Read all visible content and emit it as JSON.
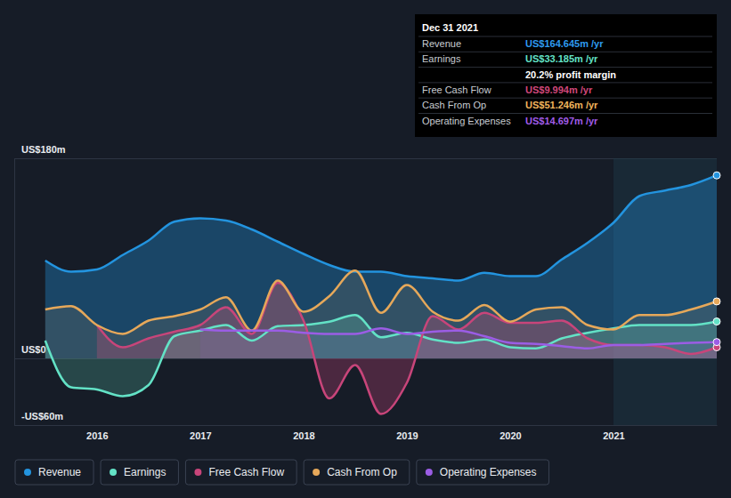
{
  "chart_data": {
    "type": "line",
    "x": [
      2015.5,
      2015.75,
      2016.0,
      2016.25,
      2016.5,
      2016.75,
      2017.0,
      2017.25,
      2017.5,
      2017.75,
      2018.0,
      2018.25,
      2018.5,
      2018.75,
      2019.0,
      2019.25,
      2019.5,
      2019.75,
      2020.0,
      2020.25,
      2020.5,
      2020.75,
      2021.0,
      2021.25,
      2021.5,
      2021.75,
      2022.0
    ],
    "series": [
      {
        "name": "Revenue",
        "color": "#2394df",
        "values": [
          88,
          78,
          80,
          93,
          106,
          123,
          126,
          124,
          116,
          105,
          94,
          84,
          78,
          78,
          74,
          72,
          70,
          77,
          74,
          74,
          89,
          104,
          122,
          146,
          151,
          156,
          164.645
        ]
      },
      {
        "name": "Earnings",
        "color": "#63e2c6",
        "values": [
          16,
          -26,
          -28,
          -34,
          -24,
          20,
          25,
          30,
          16,
          29,
          30,
          33,
          39,
          19,
          23,
          17,
          14,
          17,
          10,
          9,
          18,
          23,
          27,
          30,
          30,
          30,
          33.185
        ]
      },
      {
        "name": "Free Cash Flow",
        "color": "#c8457a",
        "values": [
          null,
          null,
          30,
          10,
          18,
          24,
          30,
          46,
          22,
          68,
          34,
          -36,
          -6,
          -50,
          -22,
          38,
          26,
          41,
          32,
          32,
          34,
          18,
          12,
          12,
          10,
          4,
          9.994
        ]
      },
      {
        "name": "Cash From Op",
        "color": "#e6a85a",
        "values": [
          44,
          47,
          30,
          22,
          34,
          38,
          44,
          55,
          25,
          70,
          42,
          56,
          79,
          41,
          66,
          42,
          34,
          48,
          33,
          44,
          46,
          30,
          26,
          39,
          39,
          44,
          51.246
        ]
      },
      {
        "name": "Operating Expenses",
        "color": "#9b5de5",
        "values": [
          null,
          null,
          null,
          null,
          null,
          null,
          26,
          25,
          25,
          25,
          23,
          22,
          22,
          27,
          22,
          24,
          25,
          20,
          14,
          13,
          11,
          9,
          12,
          12,
          13,
          14,
          14.697
        ]
      }
    ],
    "xlim": [
      2015.2,
      2022.0
    ],
    "xticks": [
      2016,
      2017,
      2018,
      2019,
      2020,
      2021
    ],
    "ylim": [
      -60,
      180
    ],
    "yticks": [
      {
        "value": 180,
        "label": "US$180m"
      },
      {
        "value": 0,
        "label": "US$0"
      },
      {
        "value": -60,
        "label": "-US$60m"
      }
    ],
    "grid": true,
    "legend": "bottom",
    "highlight_x": [
      2021.0,
      2022.0
    ],
    "tooltip": {
      "date": "Dec 31 2021",
      "rows": [
        {
          "label": "Revenue",
          "value": "US$164.645m /yr",
          "color": "#2e9bf0"
        },
        {
          "label": "Earnings",
          "value": "US$33.185m /yr",
          "color": "#63e2c6"
        },
        {
          "value": "20.2% profit margin",
          "color": "#ffffff"
        },
        {
          "label": "Free Cash Flow",
          "value": "US$9.994m /yr",
          "color": "#d0477a"
        },
        {
          "label": "Cash From Op",
          "value": "US$51.246m /yr",
          "color": "#f0b45c"
        },
        {
          "label": "Operating Expenses",
          "value": "US$14.697m /yr",
          "color": "#a05ce8"
        }
      ]
    }
  }
}
